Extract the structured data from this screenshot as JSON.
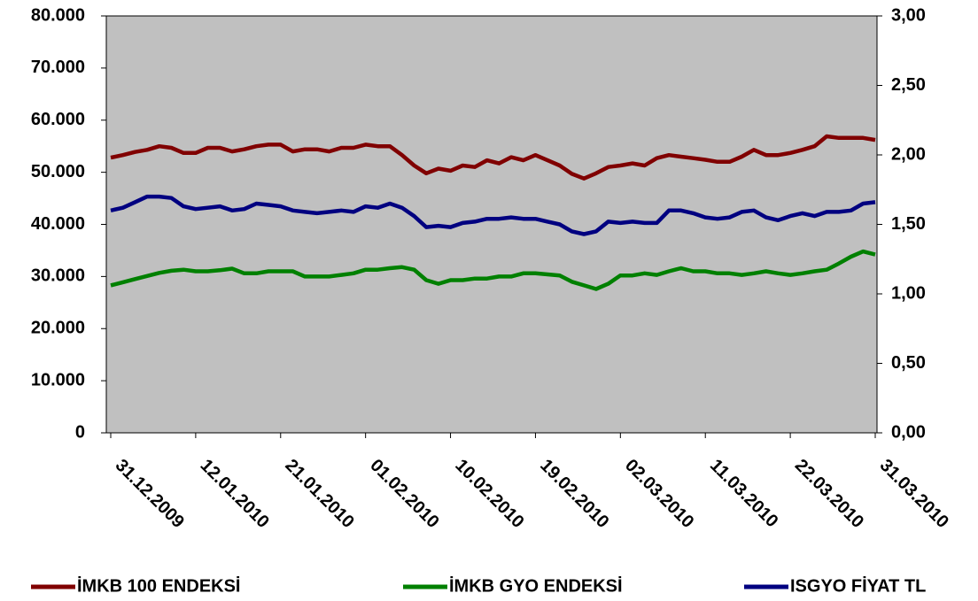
{
  "chart_data": {
    "type": "line",
    "categories": [
      "31.12.2009",
      null,
      null,
      null,
      null,
      null,
      null,
      "12.01.2010",
      null,
      null,
      null,
      null,
      null,
      null,
      "21.01.2010",
      null,
      null,
      null,
      null,
      null,
      null,
      "01.02.2010",
      null,
      null,
      null,
      null,
      null,
      null,
      "10.02.2010",
      null,
      null,
      null,
      null,
      null,
      null,
      "19.02.2010",
      null,
      null,
      null,
      null,
      null,
      null,
      "02.03.2010",
      null,
      null,
      null,
      null,
      null,
      null,
      "11.03.2010",
      null,
      null,
      null,
      null,
      null,
      null,
      "22.03.2010",
      null,
      null,
      null,
      null,
      null,
      null,
      "31.03.2010"
    ],
    "series": [
      {
        "name": "İMKB 100 ENDEKSİ",
        "color": "#800000",
        "values": [
          52800,
          53300,
          53900,
          54300,
          55000,
          54700,
          53700,
          53700,
          54700,
          54700,
          54000,
          54400,
          55000,
          55300,
          55300,
          54000,
          54400,
          54400,
          54000,
          54700,
          54700,
          55300,
          55000,
          55000,
          53300,
          51300,
          49800,
          50700,
          50300,
          51300,
          51000,
          52300,
          51700,
          52900,
          52300,
          53300,
          52300,
          51300,
          49700,
          48800,
          49800,
          51000,
          51300,
          51700,
          51300,
          52700,
          53300,
          53000,
          52700,
          52400,
          52000,
          52000,
          53000,
          54300,
          53300,
          53300,
          53700,
          54300,
          55000,
          56900,
          56600,
          56600,
          56600,
          56200
        ]
      },
      {
        "name": "İMKB GYO ENDEKSİ",
        "color": "#008000",
        "values": [
          28300,
          28900,
          29500,
          30100,
          30700,
          31100,
          31300,
          31000,
          31000,
          31200,
          31500,
          30600,
          30600,
          31000,
          31000,
          31000,
          30000,
          30000,
          30000,
          30300,
          30600,
          31300,
          31300,
          31600,
          31800,
          31300,
          29300,
          28600,
          29300,
          29300,
          29600,
          29600,
          30000,
          30000,
          30600,
          30600,
          30400,
          30200,
          29000,
          28300,
          27600,
          28600,
          30200,
          30200,
          30600,
          30300,
          31000,
          31600,
          31000,
          31000,
          30600,
          30600,
          30300,
          30600,
          31000,
          30600,
          30300,
          30600,
          31000,
          31300,
          32500,
          33800,
          34800,
          34200
        ]
      },
      {
        "name": "ISGYO FİYAT TL",
        "color": "#000080",
        "axis": "y2",
        "values": [
          1.6,
          1.62,
          1.66,
          1.7,
          1.7,
          1.69,
          1.63,
          1.61,
          1.62,
          1.63,
          1.6,
          1.61,
          1.65,
          1.64,
          1.63,
          1.6,
          1.59,
          1.58,
          1.59,
          1.6,
          1.59,
          1.63,
          1.62,
          1.65,
          1.62,
          1.56,
          1.48,
          1.49,
          1.48,
          1.51,
          1.52,
          1.54,
          1.54,
          1.55,
          1.54,
          1.54,
          1.52,
          1.5,
          1.45,
          1.43,
          1.45,
          1.52,
          1.51,
          1.52,
          1.51,
          1.51,
          1.6,
          1.6,
          1.58,
          1.55,
          1.54,
          1.55,
          1.59,
          1.6,
          1.55,
          1.53,
          1.56,
          1.58,
          1.56,
          1.59,
          1.59,
          1.6,
          1.65,
          1.66
        ]
      }
    ],
    "ylim": [
      0,
      80000
    ],
    "yticks": [
      0,
      {
        "value": 10000,
        "label": "10.000"
      },
      {
        "value": 20000,
        "label": "20.000"
      },
      {
        "value": 30000,
        "label": "30.000"
      },
      {
        "value": 40000,
        "label": "40.000"
      },
      {
        "value": 50000,
        "label": "50.000"
      },
      {
        "value": 60000,
        "label": "60.000"
      },
      {
        "value": 70000,
        "label": "70.000"
      },
      {
        "value": 80000,
        "label": "80.000"
      }
    ],
    "y2lim": [
      0,
      3
    ],
    "y2ticks": [
      {
        "value": 0,
        "label": "0,00"
      },
      {
        "value": 0.5,
        "label": "0,50"
      },
      {
        "value": 1,
        "label": "1,00"
      },
      {
        "value": 1.5,
        "label": "1,50"
      },
      {
        "value": 2,
        "label": "2,00"
      },
      {
        "value": 2.5,
        "label": "2,50"
      },
      {
        "value": 3,
        "label": "3,00"
      }
    ],
    "grid": false,
    "legend": "bottom",
    "plot_background": "#c0c0c0"
  }
}
